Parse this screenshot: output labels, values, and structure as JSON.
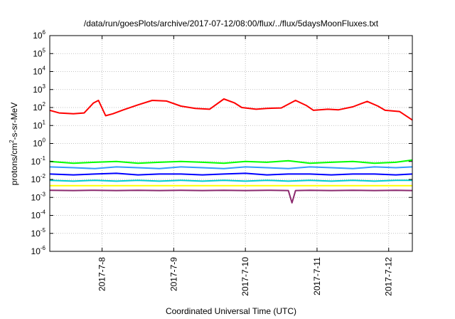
{
  "chart_data": {
    "type": "line",
    "title": "/data/run/goesPlots/archive/2017-07-12/08:00/flux/../flux/5daysMoonFluxes.txt",
    "xlabel": "Coordinated Universal Time (UTC)",
    "ylabel": {
      "pre": "protons/cm",
      "sup": "2",
      "post": "-s-sr-MeV"
    },
    "y_scale": "log",
    "ylim": [
      1e-06,
      1000000.0
    ],
    "y_ticks": [
      {
        "base": "10",
        "exp": "-6",
        "value": 1e-06
      },
      {
        "base": "10",
        "exp": "-5",
        "value": 1e-05
      },
      {
        "base": "10",
        "exp": "-4",
        "value": 0.0001
      },
      {
        "base": "10",
        "exp": "-3",
        "value": 0.001
      },
      {
        "base": "10",
        "exp": "-2",
        "value": 0.01
      },
      {
        "base": "10",
        "exp": "-1",
        "value": 0.1
      },
      {
        "base": "10",
        "exp": "0",
        "value": 1
      },
      {
        "base": "10",
        "exp": "1",
        "value": 10
      },
      {
        "base": "10",
        "exp": "2",
        "value": 100
      },
      {
        "base": "10",
        "exp": "3",
        "value": 1000
      },
      {
        "base": "10",
        "exp": "4",
        "value": 10000
      },
      {
        "base": "10",
        "exp": "5",
        "value": 100000
      },
      {
        "base": "10",
        "exp": "6",
        "value": 1000000
      }
    ],
    "x_ticks": [
      {
        "label": "2017-7-8",
        "day": 8
      },
      {
        "label": "2017-7-9",
        "day": 9
      },
      {
        "label": "2017-7-10",
        "day": 10
      },
      {
        "label": "2017-7-11",
        "day": 11
      },
      {
        "label": "2017-7-12",
        "day": 12
      }
    ],
    "xlim_days": [
      7.27,
      12.33
    ],
    "grid": true,
    "colors": {
      "red": "#ff0000",
      "green": "#00ff00",
      "lightblue": "#3399ff",
      "blue": "#0000ff",
      "cyan": "#00cccc",
      "yellow": "#ffff00",
      "purple": "#8b2a6e"
    },
    "series": [
      {
        "color": "#ff0000",
        "x": [
          7.27,
          7.4,
          7.6,
          7.75,
          7.88,
          7.95,
          8.05,
          8.15,
          8.3,
          8.5,
          8.7,
          8.9,
          9.1,
          9.3,
          9.5,
          9.7,
          9.85,
          9.95,
          10.15,
          10.3,
          10.5,
          10.7,
          10.85,
          10.95,
          11.15,
          11.3,
          11.5,
          11.7,
          11.85,
          11.95,
          12.15,
          12.33
        ],
        "y": [
          70,
          50,
          45,
          50,
          180,
          250,
          35,
          45,
          75,
          140,
          250,
          230,
          120,
          90,
          80,
          300,
          180,
          100,
          80,
          90,
          95,
          250,
          130,
          70,
          80,
          75,
          110,
          220,
          120,
          70,
          60,
          20
        ]
      },
      {
        "color": "#00ff00",
        "x": [
          7.27,
          7.6,
          7.9,
          8.2,
          8.5,
          8.8,
          9.1,
          9.4,
          9.7,
          10.0,
          10.3,
          10.6,
          10.9,
          11.2,
          11.5,
          11.8,
          12.1,
          12.33
        ],
        "y": [
          0.1,
          0.08,
          0.09,
          0.1,
          0.08,
          0.09,
          0.1,
          0.09,
          0.08,
          0.1,
          0.09,
          0.11,
          0.08,
          0.09,
          0.1,
          0.08,
          0.09,
          0.12
        ]
      },
      {
        "color": "#3399ff",
        "x": [
          7.27,
          7.6,
          7.9,
          8.2,
          8.5,
          8.8,
          9.1,
          9.4,
          9.7,
          10.0,
          10.3,
          10.6,
          10.9,
          11.2,
          11.5,
          11.8,
          12.1,
          12.33
        ],
        "y": [
          0.05,
          0.045,
          0.04,
          0.05,
          0.045,
          0.04,
          0.05,
          0.045,
          0.04,
          0.05,
          0.045,
          0.04,
          0.05,
          0.045,
          0.04,
          0.05,
          0.045,
          0.05
        ]
      },
      {
        "color": "#0000ff",
        "x": [
          7.27,
          7.6,
          7.9,
          8.2,
          8.5,
          8.8,
          9.1,
          9.4,
          9.7,
          10.0,
          10.3,
          10.6,
          10.9,
          11.2,
          11.5,
          11.8,
          12.1,
          12.33
        ],
        "y": [
          0.02,
          0.018,
          0.02,
          0.022,
          0.018,
          0.02,
          0.02,
          0.018,
          0.02,
          0.022,
          0.018,
          0.02,
          0.02,
          0.018,
          0.02,
          0.02,
          0.018,
          0.02
        ]
      },
      {
        "color": "#00cccc",
        "x": [
          7.27,
          7.6,
          7.9,
          8.2,
          8.5,
          8.8,
          9.1,
          9.4,
          9.7,
          10.0,
          10.3,
          10.6,
          10.9,
          11.2,
          11.5,
          11.8,
          12.1,
          12.33
        ],
        "y": [
          0.009,
          0.008,
          0.009,
          0.008,
          0.009,
          0.008,
          0.009,
          0.008,
          0.009,
          0.008,
          0.009,
          0.008,
          0.009,
          0.008,
          0.009,
          0.008,
          0.009,
          0.009
        ]
      },
      {
        "color": "#ffff00",
        "x": [
          7.27,
          12.33
        ],
        "y": [
          0.0045,
          0.0045
        ]
      },
      {
        "color": "#8b2a6e",
        "x": [
          7.27,
          7.6,
          7.9,
          8.2,
          8.5,
          8.8,
          9.1,
          9.4,
          9.7,
          10.0,
          10.3,
          10.6,
          10.65,
          10.7,
          10.9,
          11.2,
          11.5,
          11.8,
          12.1,
          12.33
        ],
        "y": [
          0.0025,
          0.0024,
          0.0025,
          0.0024,
          0.0025,
          0.0024,
          0.0025,
          0.0024,
          0.0025,
          0.0024,
          0.0025,
          0.0024,
          0.0005,
          0.0024,
          0.0025,
          0.0024,
          0.0025,
          0.0024,
          0.0025,
          0.0024
        ]
      }
    ]
  }
}
